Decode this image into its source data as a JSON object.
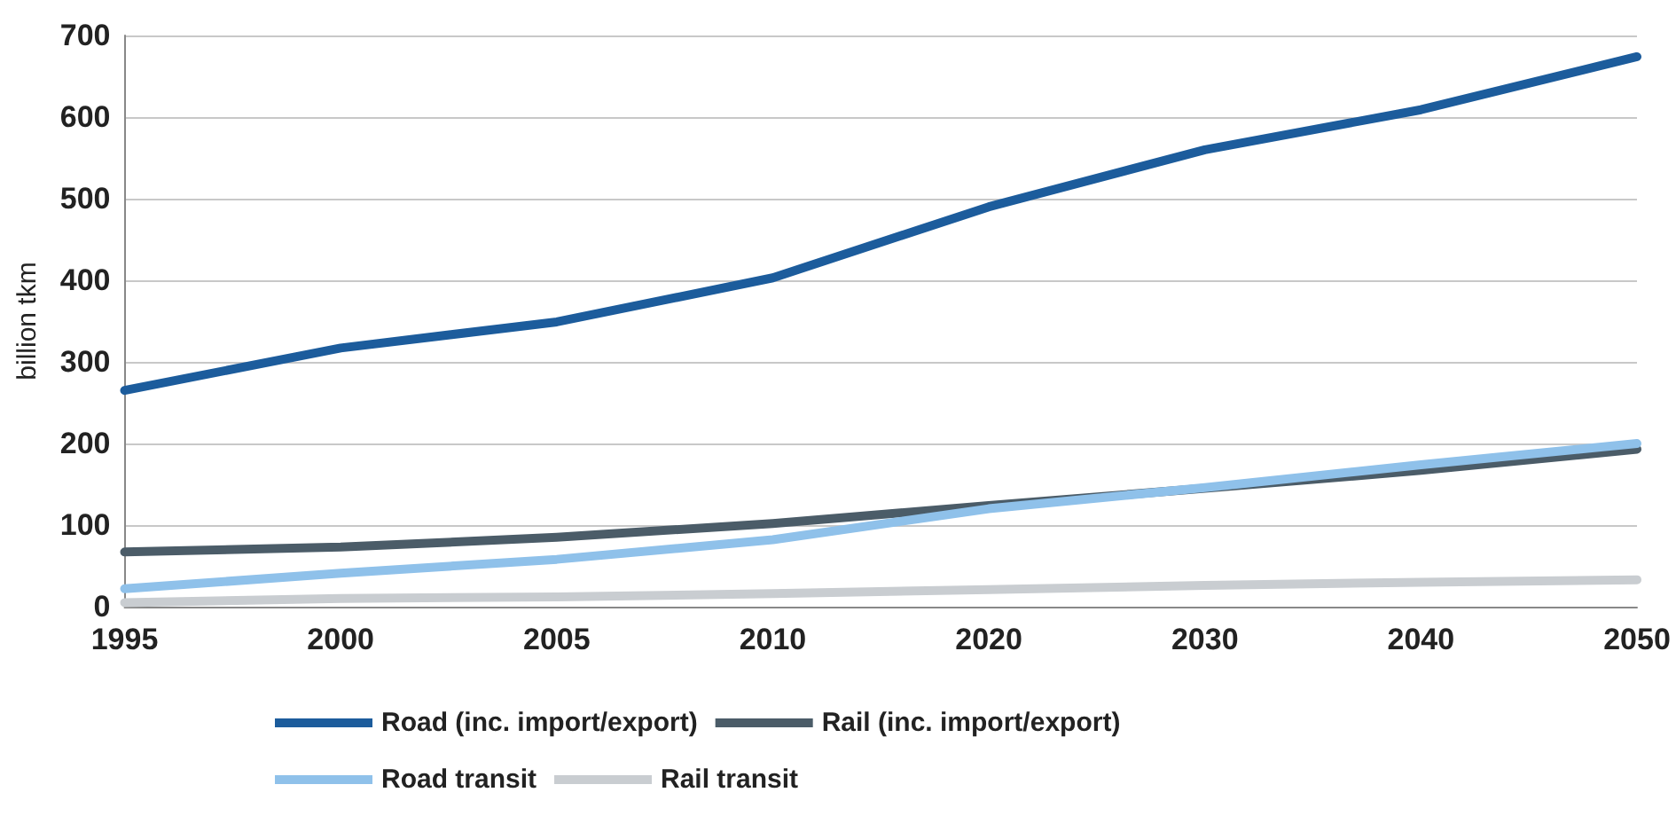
{
  "chart_data": {
    "type": "line",
    "ylabel": "billion tkm",
    "categories": [
      "1995",
      "2000",
      "2005",
      "2010",
      "2020",
      "2030",
      "2040",
      "2050"
    ],
    "series": [
      {
        "name": "Road (inc. import/export)",
        "color": "#1c5c9c",
        "values": [
          265,
          317,
          349,
          403,
          490,
          560,
          609,
          674
        ]
      },
      {
        "name": "Rail (inc. import/export)",
        "color": "#4b5c68",
        "values": [
          67,
          73,
          85,
          102,
          124,
          145,
          167,
          193
        ]
      },
      {
        "name": "Road transit",
        "color": "#8fc1ea",
        "values": [
          22,
          41,
          58,
          82,
          120,
          146,
          174,
          200
        ]
      },
      {
        "name": "Rail transit",
        "color": "#c9cdd1",
        "values": [
          5,
          10,
          12,
          16,
          21,
          26,
          30,
          33
        ]
      }
    ],
    "ylim": [
      0,
      700
    ],
    "yticks": [
      0,
      100,
      200,
      300,
      400,
      500,
      600,
      700
    ],
    "grid": "y",
    "legend": "bottom",
    "marker": "none",
    "line_style": "solid"
  }
}
